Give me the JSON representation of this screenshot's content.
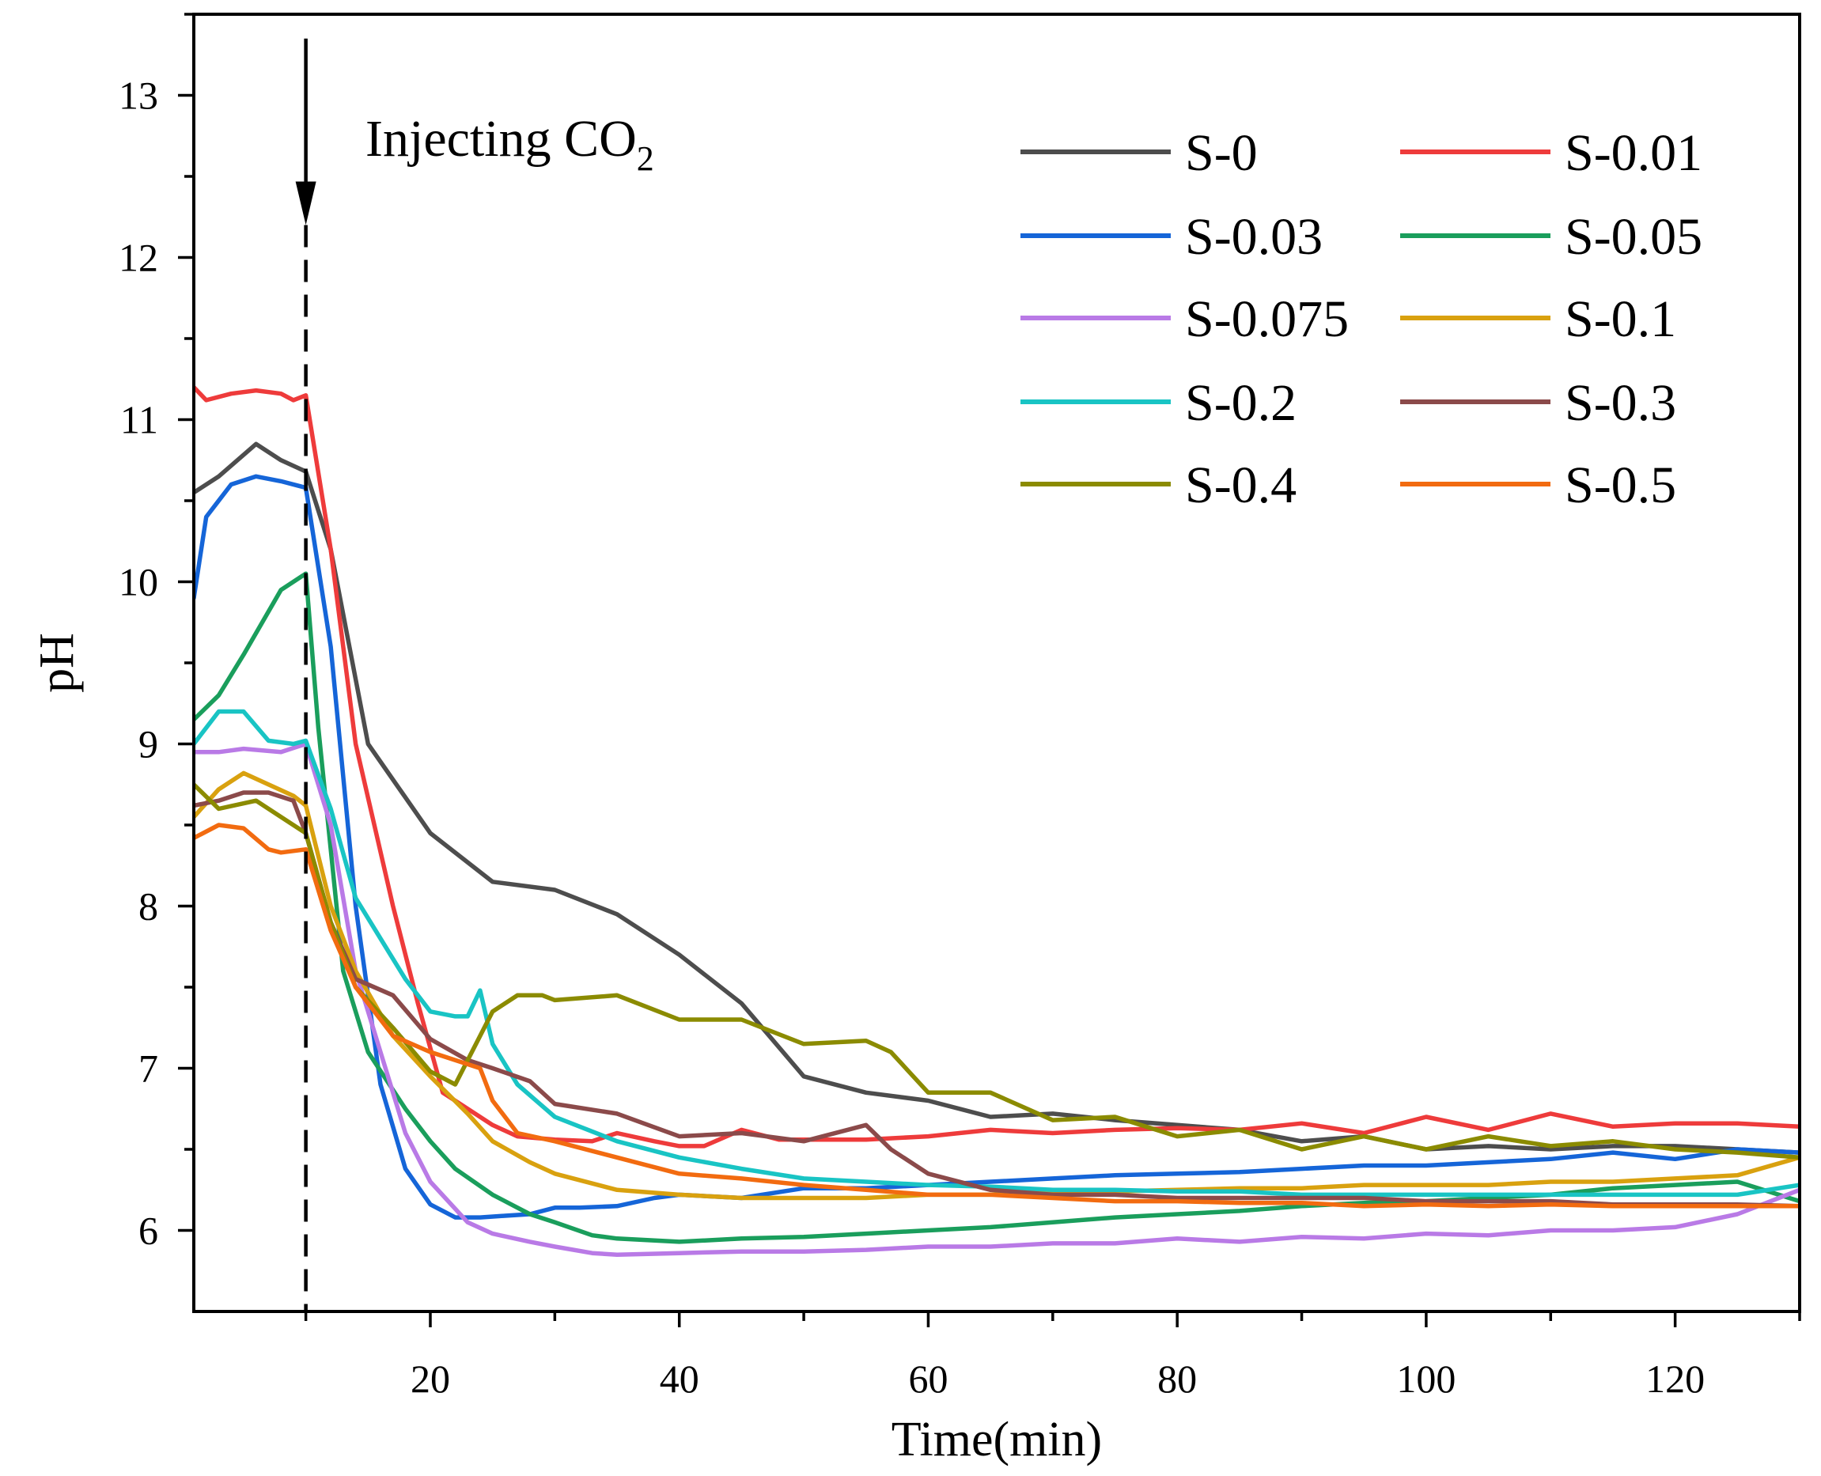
{
  "chart_data": {
    "type": "line",
    "title": "",
    "xlabel": "Time(min)",
    "ylabel": "pH",
    "xlim": [
      1,
      130
    ],
    "ylim": [
      5.5,
      13.5
    ],
    "xticks": [
      20,
      40,
      60,
      80,
      100,
      120
    ],
    "xtick_labels": [
      "20",
      "40",
      "60",
      "80",
      "100",
      "120"
    ],
    "yticks": [
      6,
      7,
      8,
      9,
      10,
      11,
      12,
      13
    ],
    "ytick_labels": [
      "6",
      "7",
      "8",
      "9",
      "10",
      "11",
      "12",
      "13"
    ],
    "grid": false,
    "legend_position": "top-right",
    "annotation": {
      "text": "Injecting CO",
      "subscript": "2",
      "x": 10,
      "arrow_from_y": 13.35,
      "arrow_to_y": 12.2
    },
    "series": [
      {
        "name": "S-0",
        "color": "#4d4d4d",
        "x": [
          1,
          3,
          6,
          8,
          10,
          12,
          15,
          20,
          25,
          30,
          35,
          40,
          45,
          50,
          55,
          60,
          65,
          70,
          75,
          80,
          85,
          90,
          95,
          100,
          105,
          110,
          115,
          120,
          125,
          130
        ],
        "y": [
          10.55,
          10.65,
          10.85,
          10.75,
          10.68,
          10.2,
          9.0,
          8.45,
          8.15,
          8.1,
          7.95,
          7.7,
          7.4,
          6.95,
          6.85,
          6.8,
          6.7,
          6.72,
          6.68,
          6.65,
          6.62,
          6.55,
          6.58,
          6.5,
          6.52,
          6.5,
          6.52,
          6.52,
          6.5,
          6.48
        ]
      },
      {
        "name": "S-0.01",
        "color": "#ee3b3b",
        "x": [
          1,
          2,
          4,
          6,
          8,
          9,
          10,
          12,
          14,
          17,
          19,
          21,
          23,
          25,
          27,
          30,
          33,
          35,
          38,
          40,
          42,
          45,
          48,
          50,
          55,
          60,
          65,
          70,
          75,
          80,
          85,
          90,
          95,
          100,
          105,
          110,
          115,
          120,
          125,
          130
        ],
        "y": [
          11.2,
          11.12,
          11.16,
          11.18,
          11.16,
          11.12,
          11.15,
          10.2,
          9.0,
          8.0,
          7.4,
          6.85,
          6.75,
          6.65,
          6.58,
          6.56,
          6.55,
          6.6,
          6.55,
          6.52,
          6.52,
          6.62,
          6.56,
          6.56,
          6.56,
          6.58,
          6.62,
          6.6,
          6.62,
          6.63,
          6.62,
          6.66,
          6.6,
          6.7,
          6.62,
          6.72,
          6.64,
          6.66,
          6.66,
          6.64
        ]
      },
      {
        "name": "S-0.03",
        "color": "#1565d8",
        "x": [
          1,
          2,
          4,
          6,
          8,
          10,
          12,
          14,
          16,
          18,
          20,
          22,
          24,
          26,
          28,
          30,
          32,
          35,
          38,
          40,
          45,
          50,
          55,
          60,
          65,
          70,
          75,
          80,
          85,
          90,
          95,
          100,
          105,
          110,
          115,
          120,
          125,
          130
        ],
        "y": [
          9.9,
          10.4,
          10.6,
          10.65,
          10.62,
          10.58,
          9.6,
          8.0,
          6.9,
          6.38,
          6.16,
          6.08,
          6.08,
          6.09,
          6.1,
          6.14,
          6.14,
          6.15,
          6.2,
          6.22,
          6.2,
          6.26,
          6.26,
          6.28,
          6.3,
          6.32,
          6.34,
          6.35,
          6.36,
          6.38,
          6.4,
          6.4,
          6.42,
          6.44,
          6.48,
          6.44,
          6.5,
          6.48
        ]
      },
      {
        "name": "S-0.05",
        "color": "#1a9e5c",
        "x": [
          1,
          3,
          5,
          8,
          10,
          11,
          13,
          15,
          18,
          20,
          22,
          25,
          28,
          30,
          33,
          35,
          40,
          45,
          50,
          55,
          60,
          65,
          70,
          75,
          80,
          85,
          90,
          95,
          100,
          105,
          110,
          115,
          120,
          125,
          130
        ],
        "y": [
          9.15,
          9.3,
          9.55,
          9.95,
          10.05,
          9.1,
          7.6,
          7.1,
          6.75,
          6.55,
          6.38,
          6.22,
          6.1,
          6.05,
          5.97,
          5.95,
          5.93,
          5.95,
          5.96,
          5.98,
          6.0,
          6.02,
          6.05,
          6.08,
          6.1,
          6.12,
          6.15,
          6.17,
          6.18,
          6.2,
          6.22,
          6.26,
          6.28,
          6.3,
          6.18
        ]
      },
      {
        "name": "S-0.075",
        "color": "#b97ae6",
        "x": [
          1,
          3,
          5,
          8,
          10,
          12,
          14,
          16,
          18,
          20,
          23,
          25,
          28,
          30,
          33,
          35,
          40,
          45,
          50,
          55,
          60,
          65,
          70,
          75,
          80,
          85,
          90,
          95,
          100,
          105,
          110,
          115,
          120,
          125,
          130
        ],
        "y": [
          8.95,
          8.95,
          8.97,
          8.95,
          9.0,
          8.5,
          7.6,
          7.1,
          6.6,
          6.3,
          6.05,
          5.98,
          5.93,
          5.9,
          5.86,
          5.85,
          5.86,
          5.87,
          5.87,
          5.88,
          5.9,
          5.9,
          5.92,
          5.92,
          5.95,
          5.93,
          5.96,
          5.95,
          5.98,
          5.97,
          6.0,
          6.0,
          6.02,
          6.1,
          6.25
        ]
      },
      {
        "name": "S-0.1",
        "color": "#d9a10f",
        "x": [
          1,
          3,
          5,
          7,
          9,
          10,
          12,
          14,
          17,
          20,
          23,
          25,
          28,
          30,
          35,
          40,
          45,
          50,
          55,
          60,
          65,
          70,
          75,
          80,
          85,
          90,
          95,
          100,
          105,
          110,
          115,
          120,
          125,
          130
        ],
        "y": [
          8.55,
          8.72,
          8.82,
          8.75,
          8.68,
          8.62,
          8.0,
          7.6,
          7.2,
          6.95,
          6.72,
          6.55,
          6.42,
          6.35,
          6.25,
          6.22,
          6.2,
          6.2,
          6.2,
          6.22,
          6.22,
          6.24,
          6.24,
          6.25,
          6.26,
          6.26,
          6.28,
          6.28,
          6.28,
          6.3,
          6.3,
          6.32,
          6.34,
          6.45
        ]
      },
      {
        "name": "S-0.2",
        "color": "#19c4c4",
        "x": [
          1,
          3,
          5,
          7,
          9,
          10,
          12,
          14,
          16,
          18,
          20,
          22,
          23,
          24,
          25,
          27,
          30,
          35,
          40,
          45,
          50,
          55,
          60,
          65,
          70,
          75,
          80,
          85,
          90,
          95,
          100,
          105,
          110,
          115,
          120,
          125,
          130
        ],
        "y": [
          9.0,
          9.2,
          9.2,
          9.02,
          9.0,
          9.02,
          8.6,
          8.05,
          7.8,
          7.55,
          7.35,
          7.32,
          7.32,
          7.48,
          7.15,
          6.9,
          6.7,
          6.55,
          6.45,
          6.38,
          6.32,
          6.3,
          6.28,
          6.27,
          6.25,
          6.25,
          6.24,
          6.24,
          6.22,
          6.22,
          6.22,
          6.22,
          6.22,
          6.22,
          6.22,
          6.22,
          6.28
        ]
      },
      {
        "name": "S-0.3",
        "color": "#8b4a4a",
        "x": [
          1,
          3,
          5,
          7,
          9,
          10,
          12,
          14,
          17,
          20,
          23,
          25,
          28,
          30,
          35,
          40,
          45,
          50,
          55,
          57,
          60,
          65,
          70,
          75,
          80,
          85,
          90,
          95,
          100,
          105,
          110,
          115,
          120,
          125,
          130
        ],
        "y": [
          8.62,
          8.65,
          8.7,
          8.7,
          8.65,
          8.45,
          7.9,
          7.55,
          7.45,
          7.18,
          7.05,
          7.0,
          6.92,
          6.78,
          6.72,
          6.58,
          6.6,
          6.55,
          6.65,
          6.5,
          6.35,
          6.25,
          6.22,
          6.22,
          6.2,
          6.2,
          6.2,
          6.2,
          6.18,
          6.18,
          6.18,
          6.16,
          6.16,
          6.16,
          6.15
        ]
      },
      {
        "name": "S-0.4",
        "color": "#8b8b00",
        "x": [
          1,
          3,
          6,
          8,
          10,
          12,
          14,
          17,
          20,
          22,
          25,
          27,
          29,
          30,
          35,
          40,
          45,
          50,
          55,
          57,
          60,
          65,
          70,
          75,
          80,
          85,
          90,
          95,
          100,
          105,
          110,
          115,
          120,
          125,
          130
        ],
        "y": [
          8.75,
          8.6,
          8.65,
          8.55,
          8.45,
          7.9,
          7.5,
          7.25,
          6.98,
          6.9,
          7.35,
          7.45,
          7.45,
          7.42,
          7.45,
          7.3,
          7.3,
          7.15,
          7.17,
          7.1,
          6.85,
          6.85,
          6.68,
          6.7,
          6.58,
          6.62,
          6.5,
          6.58,
          6.5,
          6.58,
          6.52,
          6.55,
          6.5,
          6.48,
          6.45
        ]
      },
      {
        "name": "S-0.5",
        "color": "#f26b10",
        "x": [
          1,
          3,
          5,
          7,
          8,
          10,
          12,
          14,
          17,
          20,
          24,
          25,
          27,
          30,
          35,
          40,
          45,
          50,
          55,
          60,
          65,
          70,
          75,
          80,
          85,
          90,
          95,
          100,
          105,
          110,
          115,
          120,
          125,
          130
        ],
        "y": [
          8.42,
          8.5,
          8.48,
          8.35,
          8.33,
          8.35,
          7.85,
          7.5,
          7.2,
          7.1,
          7.0,
          6.8,
          6.6,
          6.55,
          6.45,
          6.35,
          6.32,
          6.28,
          6.25,
          6.22,
          6.22,
          6.2,
          6.18,
          6.18,
          6.17,
          6.17,
          6.15,
          6.16,
          6.15,
          6.16,
          6.15,
          6.15,
          6.15,
          6.15
        ]
      }
    ]
  }
}
